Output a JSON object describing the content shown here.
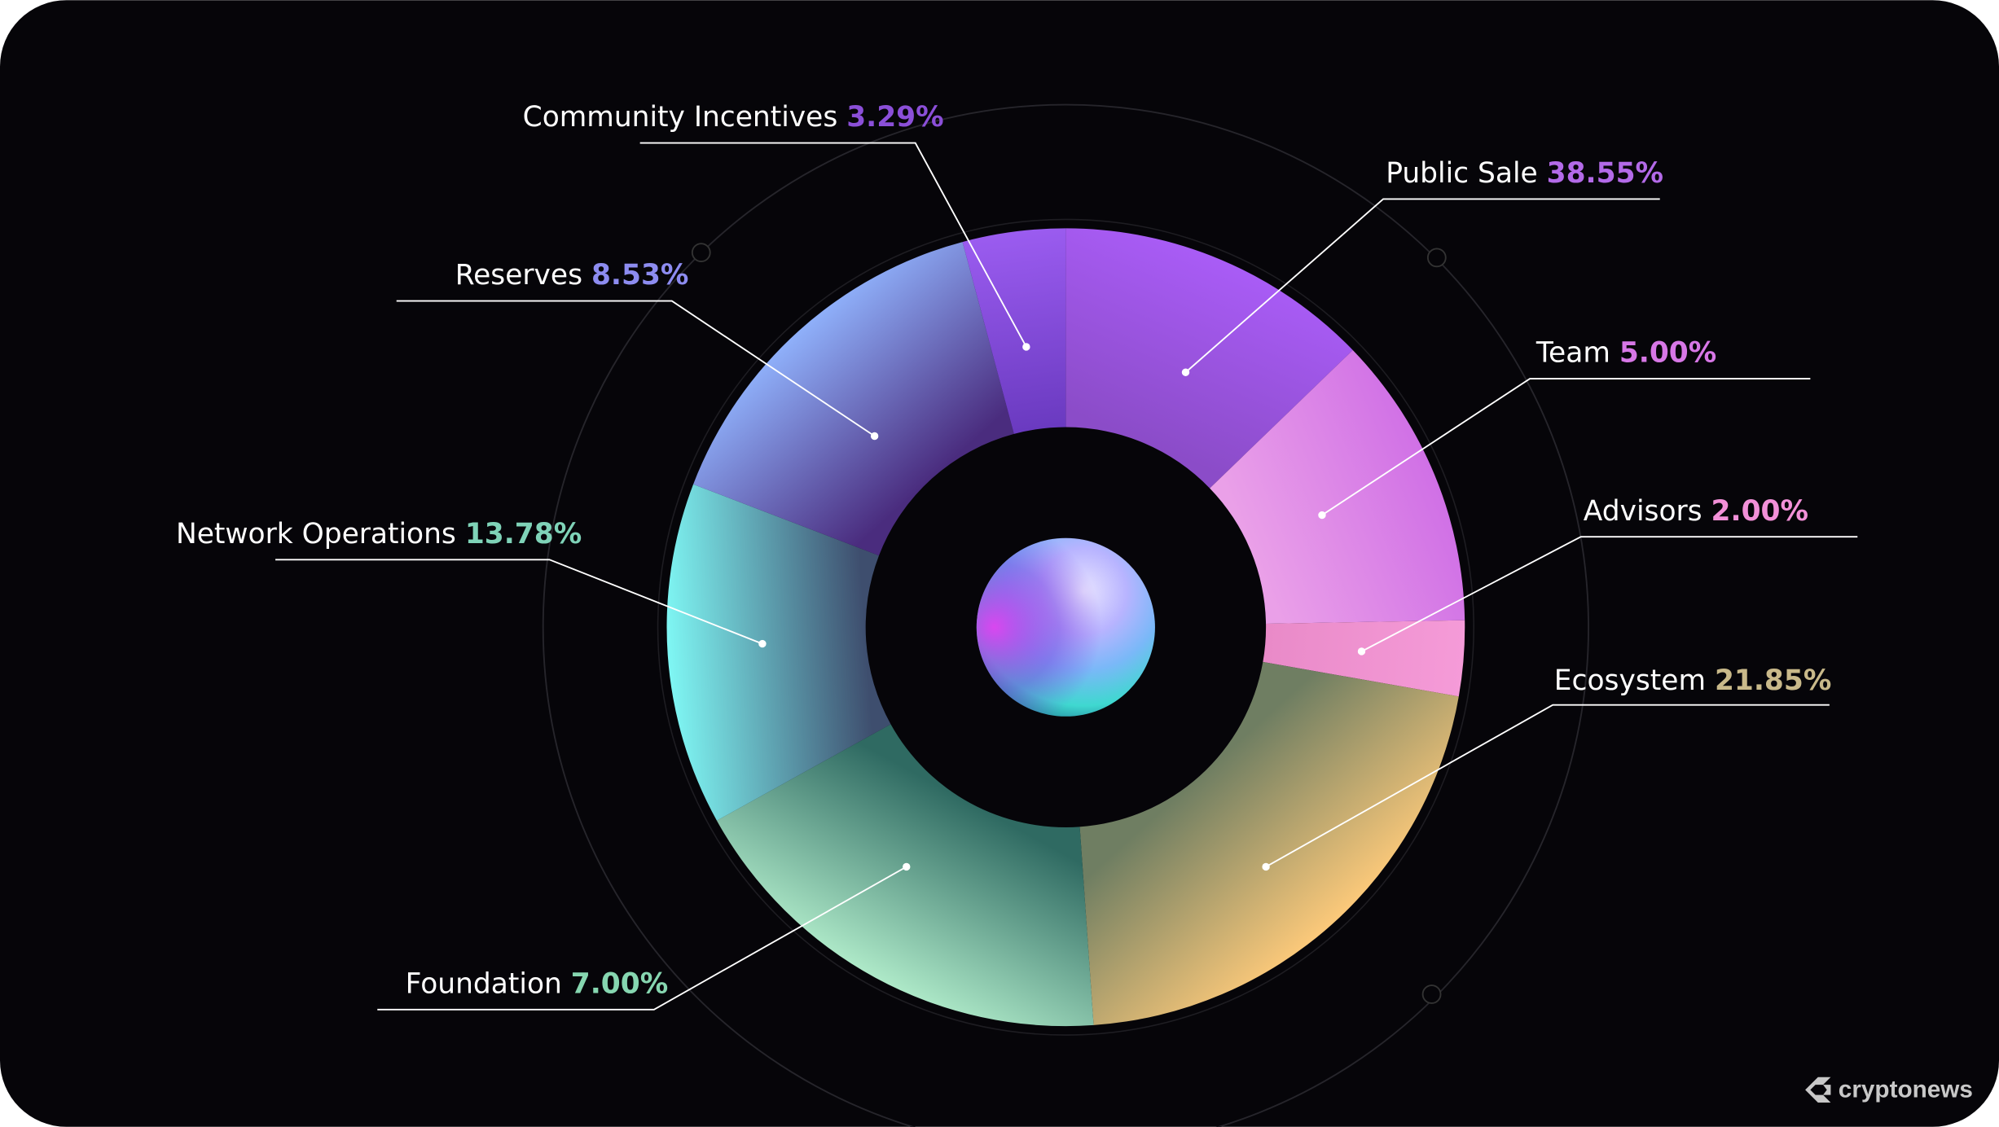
{
  "chart_data": {
    "type": "pie",
    "style": "donut",
    "legend": "none",
    "grid": false,
    "slices": [
      {
        "label": "Public Sale",
        "value": 38.55,
        "value_text": "38.55%",
        "color": "#b36ae8"
      },
      {
        "label": "Team",
        "value": 5.0,
        "value_text": "5.00%",
        "color": "#d777e6"
      },
      {
        "label": "Advisors",
        "value": 2.0,
        "value_text": "2.00%",
        "color": "#f290d8"
      },
      {
        "label": "Ecosystem",
        "value": 21.85,
        "value_text": "21.85%",
        "color": "#c9b98a"
      },
      {
        "label": "Foundation",
        "value": 7.0,
        "value_text": "7.00%",
        "color": "#86d6b0"
      },
      {
        "label": "Network Operations",
        "value": 13.78,
        "value_text": "13.78%",
        "color": "#7fd3b8"
      },
      {
        "label": "Reserves",
        "value": 8.53,
        "value_text": "8.53%",
        "color": "#8d8cf0"
      },
      {
        "label": "Community Incentives",
        "value": 3.29,
        "value_text": "3.29%",
        "color": "#8b4fd8"
      }
    ]
  },
  "watermark": {
    "text": "cryptonews",
    "icon": "cryptonews-logo-icon"
  },
  "colors": {
    "background": "#060509",
    "frame": "#ffffff"
  }
}
